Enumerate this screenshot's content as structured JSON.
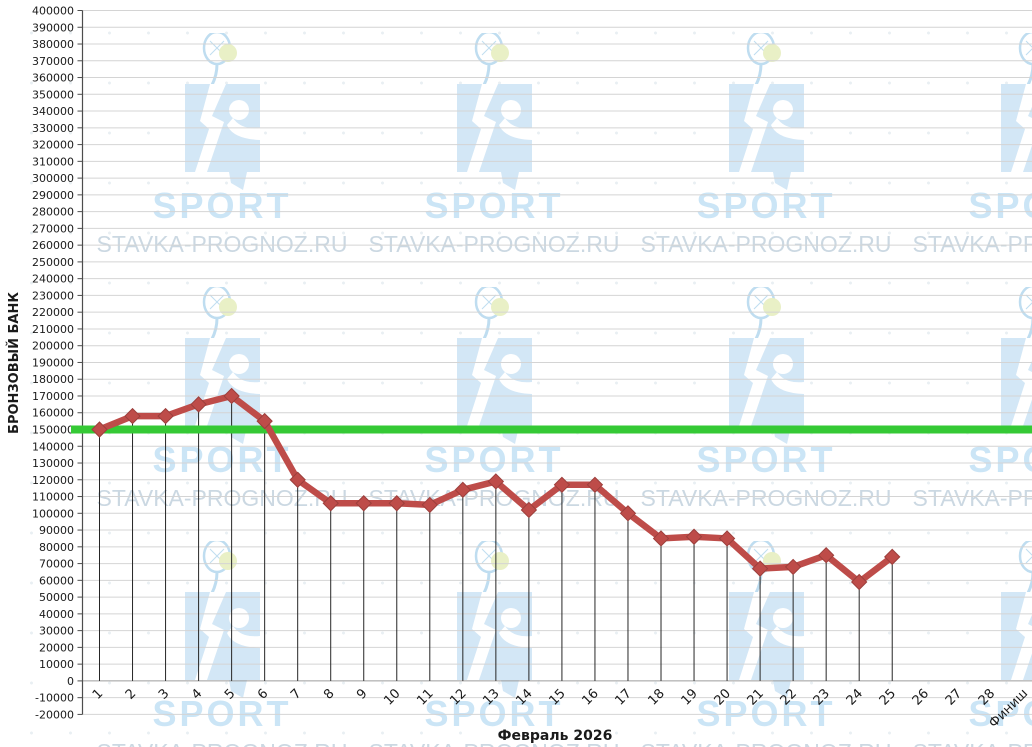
{
  "chart_data": {
    "type": "line",
    "title": "",
    "xlabel": "Февраль 2026",
    "ylabel": "БРОНЗОВЫЙ БАНК",
    "categories": [
      "1",
      "2",
      "3",
      "4",
      "5",
      "6",
      "7",
      "8",
      "9",
      "10",
      "11",
      "12",
      "13",
      "14",
      "15",
      "16",
      "17",
      "18",
      "19",
      "20",
      "21",
      "22",
      "23",
      "24",
      "25",
      "26",
      "27",
      "28",
      "Финиш"
    ],
    "series": [
      {
        "values": [
          150000,
          158000,
          158000,
          165000,
          170000,
          155000,
          120000,
          106000,
          106000,
          106000,
          105000,
          114000,
          119000,
          102000,
          117000,
          117000,
          100000,
          85000,
          86000,
          85000,
          67000,
          68000,
          75000,
          59000,
          74000
        ]
      }
    ],
    "target_line": {
      "value": 150000
    },
    "ylim": [
      -20000,
      400000
    ],
    "ytick_step": 10000,
    "grid": true,
    "drop_lines": true,
    "legend": "none",
    "marker": "diamond"
  },
  "colors": {
    "series": "#BE4C49",
    "marker_border": "#9C3F3C",
    "target": "#35C935",
    "gridline": "#D4D4D4",
    "zero_line": "#9C9C9C",
    "axis": "#4D4D4D",
    "drop_line": "#262626",
    "label": "#1A1A1A",
    "watermark_square": "#D3E7F6",
    "watermark_brand_text": "#CBE5F6",
    "watermark_site_text": "#CBD8E2",
    "watermark_racket": "#BFDDF0",
    "watermark_ball": "#E9F0C6"
  },
  "watermark": {
    "brand": "SPORT",
    "site": "STAVKA-PROGNOZ.RU"
  }
}
